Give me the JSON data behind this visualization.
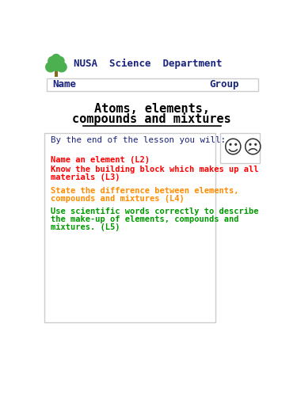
{
  "bg_color": "#ffffff",
  "header_text": "NUSA  Science  Department",
  "header_color": "#1a237e",
  "name_label": "Name",
  "group_label": "Group",
  "title_line1": "Atoms, elements,",
  "title_line2": "compounds and mixtures",
  "title_color": "#000000",
  "intro_text": "By the end of the lesson you will:",
  "intro_color": "#1a237e",
  "box_edge_color": "#cccccc",
  "bg_color_box": "#ffffff",
  "obj1_text": "Name an element (L2)",
  "obj1_color": "#ff0000",
  "obj2_line1": "Know the building block which makes up all",
  "obj2_line2": "materials (L3)",
  "obj2_color": "#ff0000",
  "obj3_line1": "State the difference between elements,",
  "obj3_line2": "compounds and mixtures (L4)",
  "obj3_color": "#ff8c00",
  "obj4_line1": "Use scientific words correctly to describe",
  "obj4_line2": "the make-up of elements, compounds and",
  "obj4_line3": "mixtures. (L5)",
  "obj4_color": "#009900",
  "tree_trunk_color": "#8B6914",
  "tree_leaf_color": "#4CAF50",
  "smiley_color": "#333333"
}
